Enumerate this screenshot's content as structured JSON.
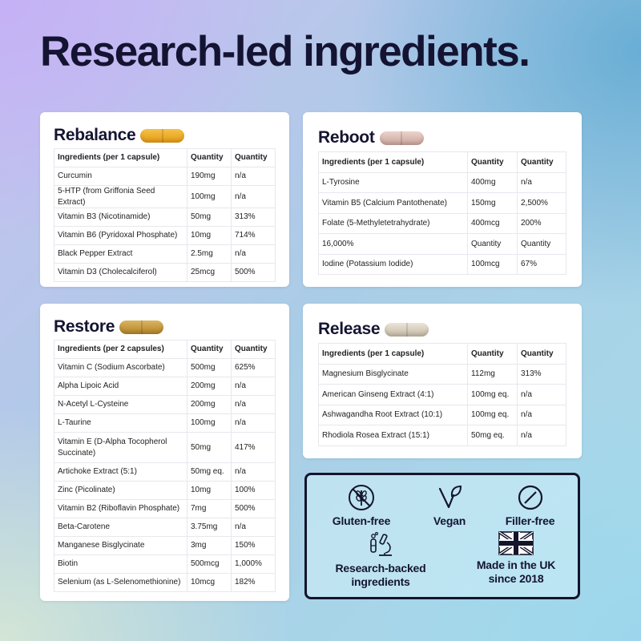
{
  "headline": "Research-led ingredients.",
  "colors": {
    "navy": "#141432",
    "rebalance_capsule": "#e8a21c",
    "reboot_capsule": "#d9b7b0",
    "restore_capsule": "#c79a3a",
    "release_capsule": "#d6ccbc"
  },
  "rebalance": {
    "title": "Rebalance",
    "columns": [
      "Ingredients (per 1 capsule)",
      "Quantity",
      "Quantity"
    ],
    "rows": [
      [
        "Curcumin",
        "190mg",
        "n/a"
      ],
      [
        "5-HTP (from Griffonia Seed Extract)",
        "100mg",
        "n/a"
      ],
      [
        "Vitamin B3 (Nicotinamide)",
        "50mg",
        "313%"
      ],
      [
        "Vitamin B6 (Pyridoxal Phosphate)",
        "10mg",
        "714%"
      ],
      [
        "Black Pepper Extract",
        "2.5mg",
        "n/a"
      ],
      [
        "Vitamin D3 (Cholecalciferol)",
        "25mcg",
        "500%"
      ]
    ]
  },
  "reboot": {
    "title": "Reboot",
    "columns": [
      "Ingredients (per 1 capsule)",
      "Quantity",
      "Quantity"
    ],
    "rows": [
      [
        "L-Tyrosine",
        "400mg",
        "n/a"
      ],
      [
        "Vitamin B5 (Calcium Pantothenate)",
        "150mg",
        "2,500%"
      ],
      [
        "Folate (5-Methyletetrahydrate)",
        "400mcg",
        "200%"
      ],
      [
        "16,000%",
        "Quantity",
        "Quantity"
      ],
      [
        "Iodine (Potassium Iodide)",
        "100mcg",
        "67%"
      ]
    ]
  },
  "restore": {
    "title": "Restore",
    "columns": [
      "Ingredients (per 2 capsules)",
      "Quantity",
      "Quantity"
    ],
    "rows": [
      [
        "Vitamin C (Sodium Ascorbate)",
        "500mg",
        "625%"
      ],
      [
        "Alpha Lipoic Acid",
        "200mg",
        "n/a"
      ],
      [
        "N-Acetyl L-Cysteine",
        "200mg",
        "n/a"
      ],
      [
        "L-Taurine",
        "100mg",
        "n/a"
      ],
      [
        "Vitamin E (D-Alpha Tocopherol Succinate)",
        "50mg",
        "417%"
      ],
      [
        "Artichoke Extract (5:1)",
        "50mg eq.",
        "n/a"
      ],
      [
        "Zinc (Picolinate)",
        "10mg",
        "100%"
      ],
      [
        "Vitamin B2 (Riboflavin Phosphate)",
        "7mg",
        "500%"
      ],
      [
        "Beta-Carotene",
        "3.75mg",
        "n/a"
      ],
      [
        "Manganese Bisglycinate",
        "3mg",
        "150%"
      ],
      [
        "Biotin",
        "500mcg",
        "1,000%"
      ],
      [
        "Selenium (as L-Selenomethionine)",
        "10mcg",
        "182%"
      ]
    ]
  },
  "release": {
    "title": "Release",
    "columns": [
      "Ingredients (per 1 capsule)",
      "Quantity",
      "Quantity"
    ],
    "rows": [
      [
        "Magnesium Bisglycinate",
        "112mg",
        "313%"
      ],
      [
        "American Ginseng Extract (4:1)",
        "100mg eq.",
        "n/a"
      ],
      [
        "Ashwagandha Root Extract (10:1)",
        "100mg eq.",
        "n/a"
      ],
      [
        "Rhodiola Rosea Extract (15:1)",
        "50mg eq.",
        "n/a"
      ]
    ]
  },
  "badges": {
    "gluten_free": "Gluten-free",
    "vegan": "Vegan",
    "filler_free": "Filler-free",
    "research_line1": "Research-backed",
    "research_line2": "ingredients",
    "uk_line1": "Made in the UK",
    "uk_line2": "since 2018",
    "icons": [
      "wheat-slash-icon",
      "v-leaf-icon",
      "slashed-circle-icon",
      "microscope-icon",
      "union-jack-flag-icon"
    ]
  }
}
